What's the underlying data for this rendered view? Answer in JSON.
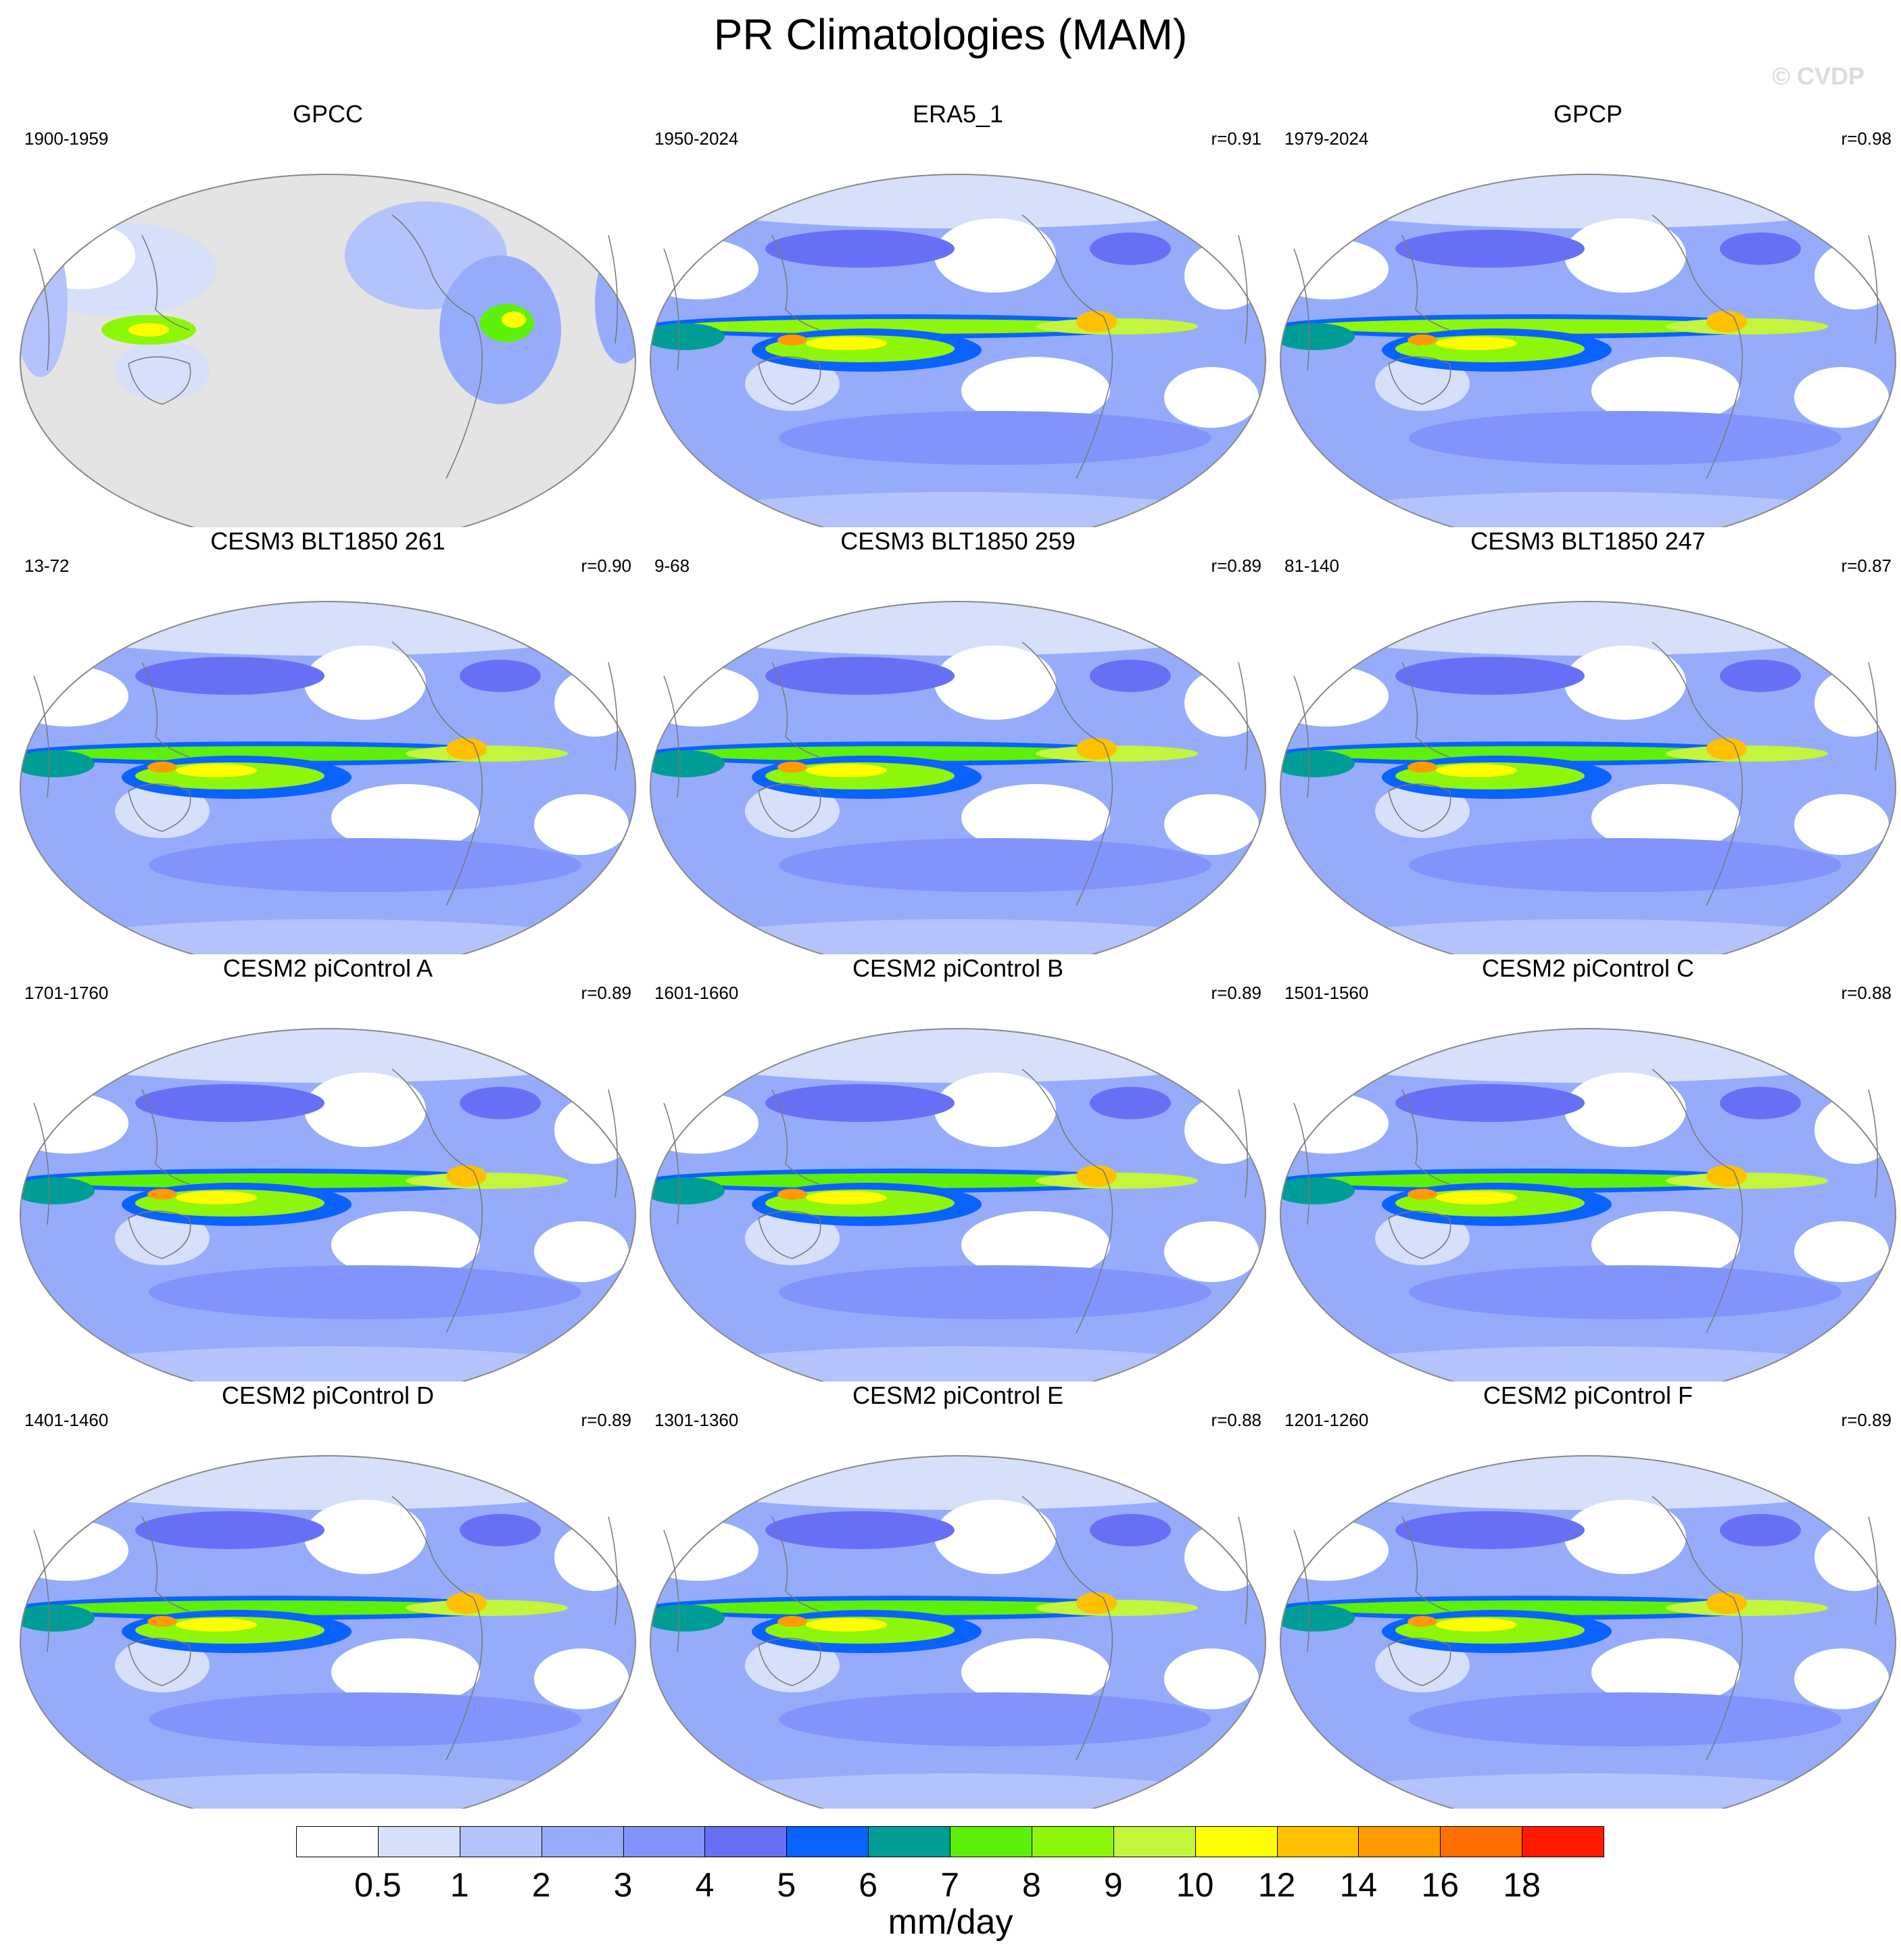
{
  "title": "PR Climatologies (MAM)",
  "watermark": "© CVDP",
  "panels": [
    {
      "name": "GPCC",
      "period": "1900-1959",
      "r": "",
      "kind": "obs-land"
    },
    {
      "name": "ERA5_1",
      "period": "1950-2024",
      "r": "r=0.91",
      "kind": "reanalysis"
    },
    {
      "name": "GPCP",
      "period": "1979-2024",
      "r": "r=0.98",
      "kind": "reanalysis"
    },
    {
      "name": "CESM3 BLT1850 261",
      "period": "13-72",
      "r": "r=0.90",
      "kind": "model"
    },
    {
      "name": "CESM3 BLT1850 259",
      "period": "9-68",
      "r": "r=0.89",
      "kind": "model"
    },
    {
      "name": "CESM3 BLT1850 247",
      "period": "81-140",
      "r": "r=0.87",
      "kind": "model"
    },
    {
      "name": "CESM2 piControl A",
      "period": "1701-1760",
      "r": "r=0.89",
      "kind": "model2"
    },
    {
      "name": "CESM2 piControl B",
      "period": "1601-1660",
      "r": "r=0.89",
      "kind": "model2"
    },
    {
      "name": "CESM2 piControl C",
      "period": "1501-1560",
      "r": "r=0.88",
      "kind": "model2"
    },
    {
      "name": "CESM2 piControl D",
      "period": "1401-1460",
      "r": "r=0.89",
      "kind": "model2"
    },
    {
      "name": "CESM2 piControl E",
      "period": "1301-1360",
      "r": "r=0.88",
      "kind": "model2"
    },
    {
      "name": "CESM2 piControl F",
      "period": "1201-1260",
      "r": "r=0.89",
      "kind": "model2"
    }
  ],
  "colorbar": {
    "units": "mm/day",
    "levels": [
      "0.5",
      "1",
      "2",
      "3",
      "4",
      "5",
      "6",
      "7",
      "8",
      "9",
      "10",
      "12",
      "14",
      "16",
      "18"
    ],
    "colors": [
      "#ffffff",
      "#d6e0fb",
      "#b4c3fb",
      "#96acfb",
      "#8194fb",
      "#6770f5",
      "#0a62ff",
      "#009c96",
      "#5df00a",
      "#8ef60a",
      "#c2f53c",
      "#ffff00",
      "#ffc000",
      "#ff9a00",
      "#ff7000",
      "#ff1a00"
    ],
    "missing_color": "#e4e4e4"
  }
}
